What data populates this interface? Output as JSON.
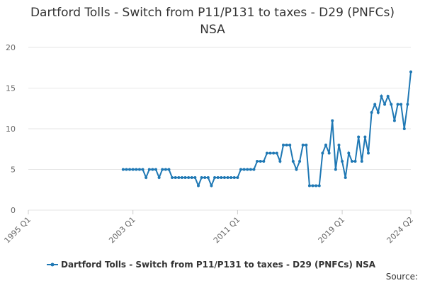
{
  "chart_data": {
    "type": "line",
    "title": "Dartford Tolls - Switch from P11/P131 to taxes - D29 (PNFCs) NSA",
    "source": "Source:",
    "x": [
      2002.25,
      2002.5,
      2002.75,
      2003,
      2003.25,
      2003.5,
      2003.75,
      2004,
      2004.25,
      2004.5,
      2004.75,
      2005,
      2005.25,
      2005.5,
      2005.75,
      2006,
      2006.25,
      2006.5,
      2006.75,
      2007,
      2007.25,
      2007.5,
      2007.75,
      2008,
      2008.25,
      2008.5,
      2008.75,
      2009,
      2009.25,
      2009.5,
      2009.75,
      2010,
      2010.25,
      2010.5,
      2010.75,
      2011,
      2011.25,
      2011.5,
      2011.75,
      2012,
      2012.25,
      2012.5,
      2012.75,
      2013,
      2013.25,
      2013.5,
      2013.75,
      2014,
      2014.25,
      2014.5,
      2014.75,
      2015,
      2015.25,
      2015.5,
      2015.75,
      2016,
      2016.25,
      2016.5,
      2016.75,
      2017,
      2017.25,
      2017.5,
      2017.75,
      2018,
      2018.25,
      2018.5,
      2018.75,
      2019,
      2019.25,
      2019.5,
      2019.75,
      2020,
      2020.25,
      2020.5,
      2020.75,
      2021,
      2021.25,
      2021.5,
      2021.75,
      2022,
      2022.25,
      2022.5,
      2022.75,
      2023,
      2023.25,
      2023.5,
      2023.75,
      2024,
      2024.25
    ],
    "series": [
      {
        "name": "Dartford Tolls - Switch from P11/P131 to taxes - D29 (PNFCs) NSA",
        "color": "#1f78b4",
        "values": [
          5,
          5,
          5,
          5,
          5,
          5,
          5,
          4,
          5,
          5,
          5,
          4,
          5,
          5,
          5,
          4,
          4,
          4,
          4,
          4,
          4,
          4,
          4,
          3,
          4,
          4,
          4,
          3,
          4,
          4,
          4,
          4,
          4,
          4,
          4,
          4,
          5,
          5,
          5,
          5,
          5,
          6,
          6,
          6,
          7,
          7,
          7,
          7,
          6,
          8,
          8,
          8,
          6,
          5,
          6,
          8,
          8,
          3,
          3,
          3,
          3,
          7,
          8,
          7,
          11,
          5,
          8,
          6,
          4,
          7,
          6,
          6,
          9,
          6,
          9,
          7,
          12,
          13,
          12,
          14,
          13,
          14,
          13,
          11,
          13,
          13,
          10,
          13,
          17
        ]
      }
    ],
    "xlim": [
      1995,
      2024.25
    ],
    "xticks": [
      {
        "value": 1995,
        "label": "1995 Q1"
      },
      {
        "value": 2003,
        "label": "2003 Q1"
      },
      {
        "value": 2011,
        "label": "2011 Q1"
      },
      {
        "value": 2019,
        "label": "2019 Q1"
      },
      {
        "value": 2024.25,
        "label": "2024 Q2"
      }
    ],
    "ylim": [
      0,
      20
    ],
    "yticks": [
      0,
      5,
      10,
      15,
      20
    ],
    "grid": true
  }
}
